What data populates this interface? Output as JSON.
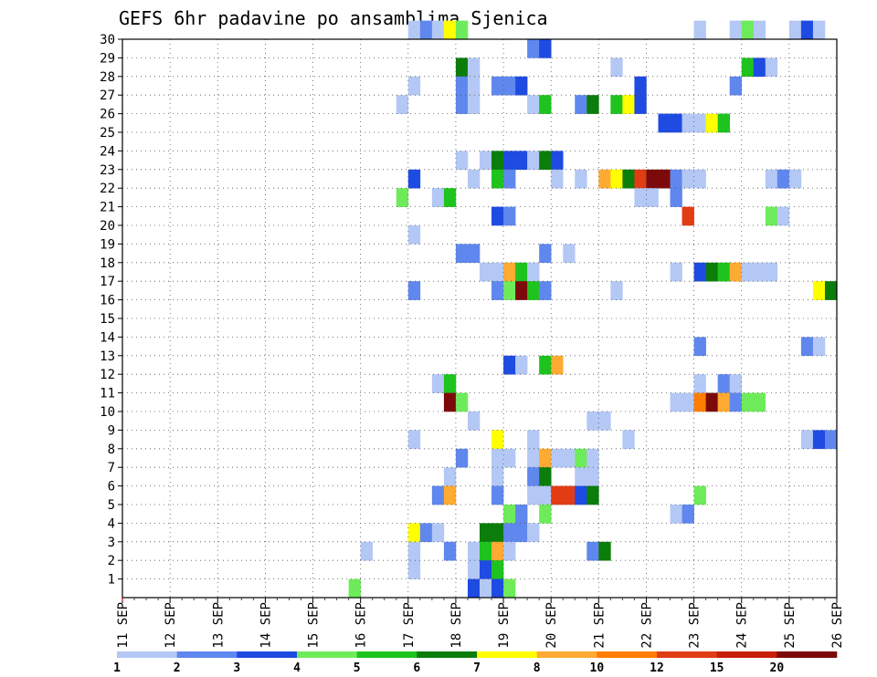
{
  "chart_data": {
    "type": "heatmap",
    "title": "GEFS 6hr padavine po ansamblima Sjenica",
    "y_ticks": [
      "1",
      "2",
      "3",
      "4",
      "5",
      "6",
      "7",
      "8",
      "9",
      "10",
      "11",
      "12",
      "13",
      "14",
      "15",
      "16",
      "17",
      "18",
      "19",
      "20",
      "21",
      "22",
      "23",
      "24",
      "25",
      "26",
      "27",
      "28",
      "29",
      "30"
    ],
    "x_ticks": [
      "11 SEP",
      "12 SEP",
      "13 SEP",
      "14 SEP",
      "15 SEP",
      "16 SEP",
      "17 SEP",
      "18 SEP",
      "19 SEP",
      "20 SEP",
      "21 SEP",
      "22 SEP",
      "23 SEP",
      "24 SEP",
      "25 SEP",
      "26 SEP"
    ],
    "x_range_days": [
      0,
      15
    ],
    "y_range_members": [
      0,
      30
    ],
    "cell_days": 0.25,
    "grid": true,
    "legend": {
      "position": "bottom",
      "labels": [
        "1",
        "2",
        "3",
        "4",
        "5",
        "6",
        "7",
        "8",
        "10",
        "12",
        "15",
        "20"
      ],
      "colors": [
        "#b4c8f5",
        "#5f87ee",
        "#1e4be1",
        "#6eeb5a",
        "#1ec31e",
        "#0a7d0a",
        "#ffff00",
        "#ffaa32",
        "#ff7d00",
        "#e13c14",
        "#c81e0a",
        "#7d0a0a"
      ]
    },
    "cells": [
      {
        "member": 30,
        "day": 6.0,
        "bin": 1
      },
      {
        "member": 30,
        "day": 6.25,
        "bin": 2
      },
      {
        "member": 30,
        "day": 6.5,
        "bin": 1
      },
      {
        "member": 30,
        "day": 6.75,
        "bin": 7
      },
      {
        "member": 30,
        "day": 7.0,
        "bin": 4
      },
      {
        "member": 30,
        "day": 12.0,
        "bin": 1
      },
      {
        "member": 30,
        "day": 12.75,
        "bin": 1
      },
      {
        "member": 30,
        "day": 13.0,
        "bin": 4
      },
      {
        "member": 30,
        "day": 13.25,
        "bin": 1
      },
      {
        "member": 30,
        "day": 14.0,
        "bin": 1
      },
      {
        "member": 30,
        "day": 14.25,
        "bin": 3
      },
      {
        "member": 30,
        "day": 14.5,
        "bin": 1
      },
      {
        "member": 29,
        "day": 8.5,
        "bin": 2
      },
      {
        "member": 29,
        "day": 8.75,
        "bin": 3
      },
      {
        "member": 28,
        "day": 7.0,
        "bin": 6
      },
      {
        "member": 28,
        "day": 7.25,
        "bin": 1
      },
      {
        "member": 28,
        "day": 10.25,
        "bin": 1
      },
      {
        "member": 28,
        "day": 13.0,
        "bin": 5
      },
      {
        "member": 28,
        "day": 13.25,
        "bin": 3
      },
      {
        "member": 28,
        "day": 13.5,
        "bin": 1
      },
      {
        "member": 27,
        "day": 6.0,
        "bin": 1
      },
      {
        "member": 27,
        "day": 7.0,
        "bin": 2
      },
      {
        "member": 27,
        "day": 7.25,
        "bin": 1
      },
      {
        "member": 27,
        "day": 7.75,
        "bin": 2
      },
      {
        "member": 27,
        "day": 8.0,
        "bin": 2
      },
      {
        "member": 27,
        "day": 8.25,
        "bin": 3
      },
      {
        "member": 27,
        "day": 10.75,
        "bin": 3
      },
      {
        "member": 27,
        "day": 12.75,
        "bin": 2
      },
      {
        "member": 26,
        "day": 5.75,
        "bin": 1
      },
      {
        "member": 26,
        "day": 7.0,
        "bin": 2
      },
      {
        "member": 26,
        "day": 7.25,
        "bin": 1
      },
      {
        "member": 26,
        "day": 8.5,
        "bin": 1
      },
      {
        "member": 26,
        "day": 8.75,
        "bin": 5
      },
      {
        "member": 26,
        "day": 9.5,
        "bin": 2
      },
      {
        "member": 26,
        "day": 9.75,
        "bin": 6
      },
      {
        "member": 26,
        "day": 10.25,
        "bin": 5
      },
      {
        "member": 26,
        "day": 10.5,
        "bin": 7
      },
      {
        "member": 26,
        "day": 10.75,
        "bin": 3
      },
      {
        "member": 25,
        "day": 11.25,
        "bin": 3
      },
      {
        "member": 25,
        "day": 11.5,
        "bin": 3
      },
      {
        "member": 25,
        "day": 11.75,
        "bin": 1
      },
      {
        "member": 25,
        "day": 12.0,
        "bin": 1
      },
      {
        "member": 25,
        "day": 12.25,
        "bin": 7
      },
      {
        "member": 25,
        "day": 12.5,
        "bin": 5
      },
      {
        "member": 23,
        "day": 7.0,
        "bin": 1
      },
      {
        "member": 23,
        "day": 7.5,
        "bin": 1
      },
      {
        "member": 23,
        "day": 7.75,
        "bin": 6
      },
      {
        "member": 23,
        "day": 8.0,
        "bin": 3
      },
      {
        "member": 23,
        "day": 8.25,
        "bin": 3
      },
      {
        "member": 23,
        "day": 8.5,
        "bin": 1
      },
      {
        "member": 23,
        "day": 8.75,
        "bin": 6
      },
      {
        "member": 23,
        "day": 9.0,
        "bin": 3
      },
      {
        "member": 22,
        "day": 6.0,
        "bin": 3
      },
      {
        "member": 22,
        "day": 7.25,
        "bin": 1
      },
      {
        "member": 22,
        "day": 7.75,
        "bin": 5
      },
      {
        "member": 22,
        "day": 8.0,
        "bin": 2
      },
      {
        "member": 22,
        "day": 9.0,
        "bin": 1
      },
      {
        "member": 22,
        "day": 9.5,
        "bin": 1
      },
      {
        "member": 22,
        "day": 10.0,
        "bin": 8
      },
      {
        "member": 22,
        "day": 10.25,
        "bin": 7
      },
      {
        "member": 22,
        "day": 10.5,
        "bin": 6
      },
      {
        "member": 22,
        "day": 10.75,
        "bin": 10
      },
      {
        "member": 22,
        "day": 11.0,
        "bin": 12
      },
      {
        "member": 22,
        "day": 11.25,
        "bin": 12
      },
      {
        "member": 22,
        "day": 11.5,
        "bin": 2
      },
      {
        "member": 22,
        "day": 11.75,
        "bin": 1
      },
      {
        "member": 22,
        "day": 12.0,
        "bin": 1
      },
      {
        "member": 22,
        "day": 13.5,
        "bin": 1
      },
      {
        "member": 22,
        "day": 13.75,
        "bin": 2
      },
      {
        "member": 22,
        "day": 14.0,
        "bin": 1
      },
      {
        "member": 21,
        "day": 5.75,
        "bin": 4
      },
      {
        "member": 21,
        "day": 6.5,
        "bin": 1
      },
      {
        "member": 21,
        "day": 6.75,
        "bin": 5
      },
      {
        "member": 21,
        "day": 10.75,
        "bin": 1
      },
      {
        "member": 21,
        "day": 11.0,
        "bin": 1
      },
      {
        "member": 21,
        "day": 11.5,
        "bin": 2
      },
      {
        "member": 20,
        "day": 7.75,
        "bin": 3
      },
      {
        "member": 20,
        "day": 8.0,
        "bin": 2
      },
      {
        "member": 20,
        "day": 11.75,
        "bin": 10
      },
      {
        "member": 20,
        "day": 13.5,
        "bin": 4
      },
      {
        "member": 20,
        "day": 13.75,
        "bin": 1
      },
      {
        "member": 19,
        "day": 6.0,
        "bin": 1
      },
      {
        "member": 18,
        "day": 7.0,
        "bin": 2
      },
      {
        "member": 18,
        "day": 7.25,
        "bin": 2
      },
      {
        "member": 18,
        "day": 8.75,
        "bin": 2
      },
      {
        "member": 18,
        "day": 9.25,
        "bin": 1
      },
      {
        "member": 17,
        "day": 7.5,
        "bin": 1
      },
      {
        "member": 17,
        "day": 7.75,
        "bin": 1
      },
      {
        "member": 17,
        "day": 8.0,
        "bin": 8
      },
      {
        "member": 17,
        "day": 8.25,
        "bin": 5
      },
      {
        "member": 17,
        "day": 8.5,
        "bin": 1
      },
      {
        "member": 17,
        "day": 11.5,
        "bin": 1
      },
      {
        "member": 17,
        "day": 12.0,
        "bin": 3
      },
      {
        "member": 17,
        "day": 12.25,
        "bin": 6
      },
      {
        "member": 17,
        "day": 12.5,
        "bin": 5
      },
      {
        "member": 17,
        "day": 12.75,
        "bin": 8
      },
      {
        "member": 17,
        "day": 13.0,
        "bin": 1
      },
      {
        "member": 17,
        "day": 13.25,
        "bin": 1
      },
      {
        "member": 17,
        "day": 13.5,
        "bin": 1
      },
      {
        "member": 16,
        "day": 6.0,
        "bin": 2
      },
      {
        "member": 16,
        "day": 7.75,
        "bin": 2
      },
      {
        "member": 16,
        "day": 8.0,
        "bin": 4
      },
      {
        "member": 16,
        "day": 8.25,
        "bin": 12
      },
      {
        "member": 16,
        "day": 8.5,
        "bin": 5
      },
      {
        "member": 16,
        "day": 8.75,
        "bin": 2
      },
      {
        "member": 16,
        "day": 10.25,
        "bin": 1
      },
      {
        "member": 16,
        "day": 14.5,
        "bin": 7
      },
      {
        "member": 16,
        "day": 14.75,
        "bin": 6
      },
      {
        "member": 13,
        "day": 12.0,
        "bin": 2
      },
      {
        "member": 13,
        "day": 14.25,
        "bin": 2
      },
      {
        "member": 13,
        "day": 14.5,
        "bin": 1
      },
      {
        "member": 12,
        "day": 8.0,
        "bin": 3
      },
      {
        "member": 12,
        "day": 8.25,
        "bin": 1
      },
      {
        "member": 12,
        "day": 8.75,
        "bin": 5
      },
      {
        "member": 12,
        "day": 9.0,
        "bin": 8
      },
      {
        "member": 11,
        "day": 6.5,
        "bin": 1
      },
      {
        "member": 11,
        "day": 6.75,
        "bin": 5
      },
      {
        "member": 11,
        "day": 12.0,
        "bin": 1
      },
      {
        "member": 11,
        "day": 12.5,
        "bin": 2
      },
      {
        "member": 11,
        "day": 12.75,
        "bin": 1
      },
      {
        "member": 10,
        "day": 6.75,
        "bin": 12
      },
      {
        "member": 10,
        "day": 7.0,
        "bin": 4
      },
      {
        "member": 10,
        "day": 11.5,
        "bin": 1
      },
      {
        "member": 10,
        "day": 11.75,
        "bin": 1
      },
      {
        "member": 10,
        "day": 12.0,
        "bin": 9
      },
      {
        "member": 10,
        "day": 12.25,
        "bin": 12
      },
      {
        "member": 10,
        "day": 12.5,
        "bin": 8
      },
      {
        "member": 10,
        "day": 12.75,
        "bin": 2
      },
      {
        "member": 10,
        "day": 13.0,
        "bin": 4
      },
      {
        "member": 10,
        "day": 13.25,
        "bin": 4
      },
      {
        "member": 9,
        "day": 7.25,
        "bin": 1
      },
      {
        "member": 9,
        "day": 9.75,
        "bin": 1
      },
      {
        "member": 9,
        "day": 10.0,
        "bin": 1
      },
      {
        "member": 8,
        "day": 6.0,
        "bin": 1
      },
      {
        "member": 8,
        "day": 7.75,
        "bin": 7
      },
      {
        "member": 8,
        "day": 8.5,
        "bin": 1
      },
      {
        "member": 8,
        "day": 10.5,
        "bin": 1
      },
      {
        "member": 8,
        "day": 14.25,
        "bin": 1
      },
      {
        "member": 8,
        "day": 14.5,
        "bin": 3
      },
      {
        "member": 8,
        "day": 14.75,
        "bin": 2
      },
      {
        "member": 7,
        "day": 7.0,
        "bin": 2
      },
      {
        "member": 7,
        "day": 7.75,
        "bin": 1
      },
      {
        "member": 7,
        "day": 8.0,
        "bin": 1
      },
      {
        "member": 7,
        "day": 8.5,
        "bin": 1
      },
      {
        "member": 7,
        "day": 8.75,
        "bin": 8
      },
      {
        "member": 7,
        "day": 9.0,
        "bin": 1
      },
      {
        "member": 7,
        "day": 9.25,
        "bin": 1
      },
      {
        "member": 7,
        "day": 9.5,
        "bin": 4
      },
      {
        "member": 7,
        "day": 9.75,
        "bin": 1
      },
      {
        "member": 6,
        "day": 6.75,
        "bin": 1
      },
      {
        "member": 6,
        "day": 7.75,
        "bin": 1
      },
      {
        "member": 6,
        "day": 8.5,
        "bin": 2
      },
      {
        "member": 6,
        "day": 8.75,
        "bin": 6
      },
      {
        "member": 6,
        "day": 9.5,
        "bin": 1
      },
      {
        "member": 6,
        "day": 9.75,
        "bin": 1
      },
      {
        "member": 5,
        "day": 6.5,
        "bin": 2
      },
      {
        "member": 5,
        "day": 6.75,
        "bin": 8
      },
      {
        "member": 5,
        "day": 7.75,
        "bin": 2
      },
      {
        "member": 5,
        "day": 8.5,
        "bin": 1
      },
      {
        "member": 5,
        "day": 8.75,
        "bin": 1
      },
      {
        "member": 5,
        "day": 9.0,
        "bin": 10
      },
      {
        "member": 5,
        "day": 9.25,
        "bin": 10
      },
      {
        "member": 5,
        "day": 9.5,
        "bin": 3
      },
      {
        "member": 5,
        "day": 9.75,
        "bin": 6
      },
      {
        "member": 5,
        "day": 12.0,
        "bin": 4
      },
      {
        "member": 4,
        "day": 8.0,
        "bin": 4
      },
      {
        "member": 4,
        "day": 8.25,
        "bin": 2
      },
      {
        "member": 4,
        "day": 8.75,
        "bin": 4
      },
      {
        "member": 4,
        "day": 11.5,
        "bin": 1
      },
      {
        "member": 4,
        "day": 11.75,
        "bin": 2
      },
      {
        "member": 3,
        "day": 6.0,
        "bin": 7
      },
      {
        "member": 3,
        "day": 6.25,
        "bin": 2
      },
      {
        "member": 3,
        "day": 6.5,
        "bin": 1
      },
      {
        "member": 3,
        "day": 7.5,
        "bin": 6
      },
      {
        "member": 3,
        "day": 7.75,
        "bin": 6
      },
      {
        "member": 3,
        "day": 8.0,
        "bin": 2
      },
      {
        "member": 3,
        "day": 8.25,
        "bin": 2
      },
      {
        "member": 3,
        "day": 8.5,
        "bin": 1
      },
      {
        "member": 2,
        "day": 5.0,
        "bin": 1
      },
      {
        "member": 2,
        "day": 6.0,
        "bin": 1
      },
      {
        "member": 2,
        "day": 6.75,
        "bin": 2
      },
      {
        "member": 2,
        "day": 7.25,
        "bin": 1
      },
      {
        "member": 2,
        "day": 7.5,
        "bin": 5
      },
      {
        "member": 2,
        "day": 7.75,
        "bin": 8
      },
      {
        "member": 2,
        "day": 8.0,
        "bin": 1
      },
      {
        "member": 2,
        "day": 9.75,
        "bin": 2
      },
      {
        "member": 2,
        "day": 10.0,
        "bin": 6
      },
      {
        "member": 1,
        "day": 6.0,
        "bin": 1
      },
      {
        "member": 1,
        "day": 7.25,
        "bin": 1
      },
      {
        "member": 1,
        "day": 7.5,
        "bin": 3
      },
      {
        "member": 1,
        "day": 7.75,
        "bin": 5
      },
      {
        "member": 0,
        "day": 4.75,
        "bin": 4
      },
      {
        "member": 0,
        "day": 7.25,
        "bin": 3
      },
      {
        "member": 0,
        "day": 7.5,
        "bin": 1
      },
      {
        "member": 0,
        "day": 7.75,
        "bin": 3
      },
      {
        "member": 0,
        "day": 8.0,
        "bin": 4
      }
    ]
  }
}
